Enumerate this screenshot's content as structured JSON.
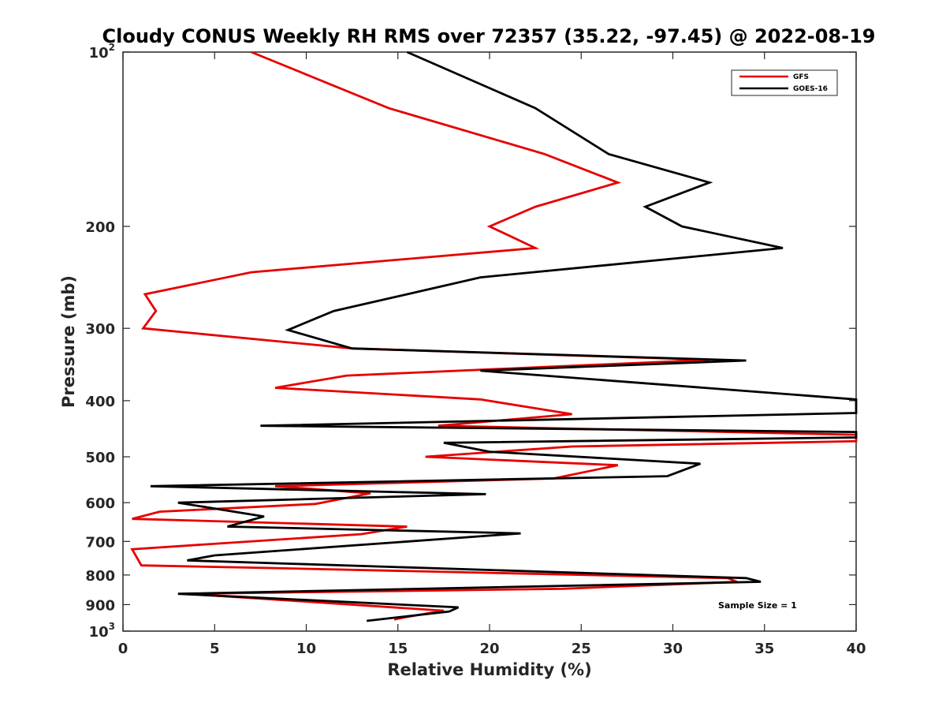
{
  "chart_data": {
    "type": "line",
    "title": "Cloudy CONUS Weekly RH RMS over 72357 (35.22, -97.45) @ 2022-08-19",
    "xlabel": "Relative Humidity (%)",
    "ylabel": "Pressure (mb)",
    "xlim": [
      0,
      40
    ],
    "ylim": [
      100,
      1000
    ],
    "y_scale": "log",
    "y_reversed": true,
    "x_ticks": [
      0,
      5,
      10,
      15,
      20,
      25,
      30,
      35,
      40
    ],
    "y_ticks": [
      {
        "value": 100,
        "label": "10",
        "sup": "2"
      },
      {
        "value": 200,
        "label": "200",
        "sup": ""
      },
      {
        "value": 300,
        "label": "300",
        "sup": ""
      },
      {
        "value": 400,
        "label": "400",
        "sup": ""
      },
      {
        "value": 500,
        "label": "500",
        "sup": ""
      },
      {
        "value": 600,
        "label": "600",
        "sup": ""
      },
      {
        "value": 700,
        "label": "700",
        "sup": ""
      },
      {
        "value": 800,
        "label": "800",
        "sup": ""
      },
      {
        "value": 900,
        "label": "900",
        "sup": ""
      },
      {
        "value": 1000,
        "label": "10",
        "sup": "3"
      }
    ],
    "grid": false,
    "legend_position": "top-right",
    "series": [
      {
        "name": "GFS",
        "color": "#e60000",
        "points": [
          [
            7.0,
            100
          ],
          [
            14.5,
            125
          ],
          [
            23.0,
            150
          ],
          [
            27.0,
            168
          ],
          [
            22.5,
            185
          ],
          [
            20.0,
            200
          ],
          [
            22.5,
            218
          ],
          [
            7.0,
            240
          ],
          [
            1.2,
            262
          ],
          [
            1.8,
            280
          ],
          [
            1.1,
            300
          ],
          [
            12.5,
            325
          ],
          [
            32.0,
            340
          ],
          [
            12.2,
            362
          ],
          [
            8.3,
            380
          ],
          [
            19.5,
            398
          ],
          [
            24.5,
            422
          ],
          [
            17.2,
            442
          ],
          [
            40.0,
            458
          ],
          [
            40.0,
            470
          ],
          [
            24.5,
            480
          ],
          [
            16.5,
            500
          ],
          [
            27.0,
            517
          ],
          [
            23.5,
            545
          ],
          [
            8.3,
            562
          ],
          [
            13.5,
            578
          ],
          [
            10.5,
            603
          ],
          [
            2.0,
            622
          ],
          [
            0.5,
            640
          ],
          [
            15.5,
            660
          ],
          [
            13.0,
            680
          ],
          [
            0.5,
            722
          ],
          [
            1.0,
            770
          ],
          [
            8.0,
            778
          ],
          [
            33.0,
            810
          ],
          [
            33.5,
            822
          ],
          [
            24.0,
            845
          ],
          [
            3.5,
            862
          ],
          [
            17.5,
            922
          ],
          [
            15.5,
            945
          ],
          [
            14.8,
            955
          ]
        ]
      },
      {
        "name": "GOES-16",
        "color": "#000000",
        "points": [
          [
            15.5,
            100
          ],
          [
            22.5,
            125
          ],
          [
            26.5,
            150
          ],
          [
            32.0,
            168
          ],
          [
            28.5,
            185
          ],
          [
            30.5,
            200
          ],
          [
            36.0,
            218
          ],
          [
            19.5,
            245
          ],
          [
            15.5,
            262
          ],
          [
            11.5,
            280
          ],
          [
            9.0,
            302
          ],
          [
            12.5,
            325
          ],
          [
            34.0,
            341
          ],
          [
            19.5,
            355
          ],
          [
            40.0,
            398
          ],
          [
            40.0,
            420
          ],
          [
            7.5,
            442
          ],
          [
            40.0,
            453
          ],
          [
            40.0,
            463
          ],
          [
            17.5,
            473
          ],
          [
            20.0,
            490
          ],
          [
            31.5,
            514
          ],
          [
            29.7,
            540
          ],
          [
            1.5,
            562
          ],
          [
            19.8,
            580
          ],
          [
            3.0,
            600
          ],
          [
            7.7,
            634
          ],
          [
            5.7,
            660
          ],
          [
            21.7,
            678
          ],
          [
            5.0,
            740
          ],
          [
            3.5,
            755
          ],
          [
            34.0,
            810
          ],
          [
            34.8,
            822
          ],
          [
            3.0,
            862
          ],
          [
            18.3,
            910
          ],
          [
            17.8,
            925
          ],
          [
            13.3,
            960
          ]
        ]
      }
    ],
    "annotations": [
      "Sample Size = 1"
    ]
  }
}
